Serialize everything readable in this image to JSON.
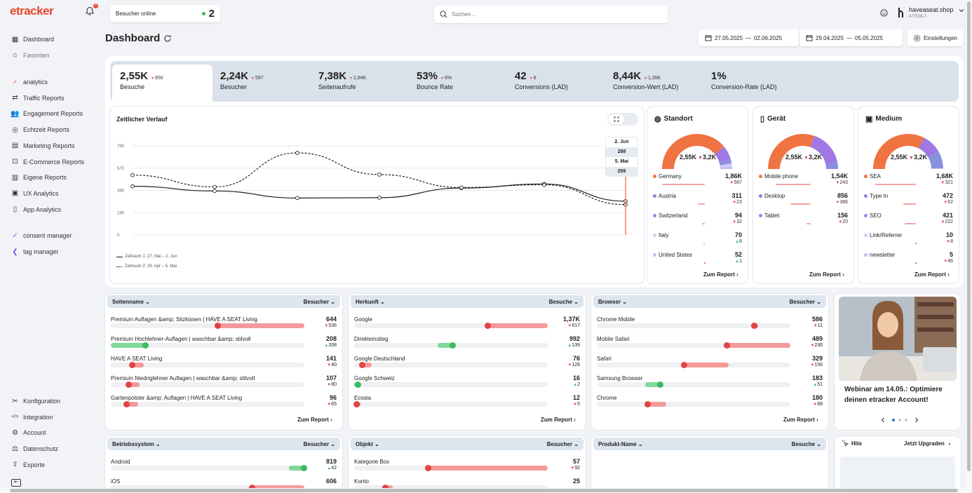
{
  "app": {
    "logo": "etracker",
    "notifications": "0"
  },
  "online": {
    "label": "Besucher online",
    "count": "2"
  },
  "search": {
    "placeholder": "Suchen ..."
  },
  "user": {
    "domain": "haveaseat.shop",
    "id": "477535-7"
  },
  "page": {
    "title": "Dashboard"
  },
  "daterange": {
    "range1": {
      "from": "27.05.2025",
      "sep": "—",
      "to": "02.06.2025"
    },
    "range2": {
      "from": "29.04.2025",
      "sep": "—",
      "to": "05.05.2025"
    },
    "settings_label": "Einstellungen"
  },
  "sidebar": {
    "main": [
      {
        "label": "Dashboard",
        "icon": "grid-icon"
      },
      {
        "label": "Favoriten",
        "icon": "star-icon"
      }
    ],
    "reports": [
      {
        "label": "analytics",
        "icon": "analytics-logo-icon"
      },
      {
        "label": "Traffic Reports",
        "icon": "traffic-icon"
      },
      {
        "label": "Engagement Reports",
        "icon": "users-icon"
      },
      {
        "label": "Echtzeit Reports",
        "icon": "realtime-icon"
      },
      {
        "label": "Marketing Reports",
        "icon": "document-icon"
      },
      {
        "label": "E-Commerce Reports",
        "icon": "cart-icon"
      },
      {
        "label": "Eigene Reports",
        "icon": "custom-report-icon"
      },
      {
        "label": "UX Analytics",
        "icon": "ux-icon"
      },
      {
        "label": "App Analytics",
        "icon": "phone-icon"
      }
    ],
    "tools": [
      {
        "label": "consent manager",
        "icon": "consent-logo-icon"
      },
      {
        "label": "tag manager",
        "icon": "tag-logo-icon"
      }
    ],
    "bottom": [
      {
        "label": "Konfiguration",
        "icon": "tools-icon"
      },
      {
        "label": "Integration",
        "icon": "code-icon"
      },
      {
        "label": "Account",
        "icon": "gear-icon"
      },
      {
        "label": "Datenschutz",
        "icon": "scale-icon"
      },
      {
        "label": "Exporte",
        "icon": "export-icon"
      }
    ]
  },
  "kpis": [
    {
      "value": "2,55K",
      "dir": "down",
      "delta": "650",
      "label": "Besuche",
      "active": true
    },
    {
      "value": "2,24K",
      "dir": "down",
      "delta": "597",
      "label": "Besucher"
    },
    {
      "value": "7,38K",
      "dir": "down",
      "delta": "2,84K",
      "label": "Seitenaufrufe"
    },
    {
      "value": "53%",
      "dir": "down",
      "delta": "6%",
      "label": "Bounce Rate"
    },
    {
      "value": "42",
      "dir": "down",
      "delta": "6",
      "label": "Conversions (LAD)"
    },
    {
      "value": "8,44K",
      "dir": "down",
      "delta": "1,35K",
      "label": "Conversion-Wert (LAD)"
    },
    {
      "value": "1%",
      "dir": "",
      "delta": "",
      "label": "Conversion-Rate (LAD)"
    }
  ],
  "timeline": {
    "title": "Zeitlicher Verlauf",
    "tooltip": {
      "date1": "2. Jun",
      "value1": "288",
      "date2": "5. Mai",
      "value2": "259"
    },
    "legend": [
      "Zeitraum 1: 27. Mai – 2. Jun",
      "Zeitraum 2: 29. Apr – 5. Mai"
    ]
  },
  "chart_data": {
    "type": "line",
    "y_ticks": [
      0,
      190,
      380,
      570,
      760
    ],
    "ylim": [
      0,
      760
    ],
    "series": [
      {
        "name": "Zeitraum 1: 27. Mai – 2. Jun",
        "style": "solid",
        "values": [
          415,
          375,
          315,
          318,
          400,
          435,
          288
        ]
      },
      {
        "name": "Zeitraum 2: 29. Apr – 5. Mai",
        "style": "dashed",
        "values": [
          510,
          410,
          700,
          515,
          405,
          428,
          259
        ]
      }
    ]
  },
  "standort": {
    "title": "Standort",
    "center_value": "2,55K",
    "center_delta": "3,2K",
    "items": [
      {
        "label": "Germany",
        "value": "1,86K",
        "dir": "down",
        "delta": "587",
        "color": "#f07342",
        "bar": 0.85
      },
      {
        "label": "Austria",
        "value": "311",
        "dir": "down",
        "delta": "23",
        "color": "#9f78e3",
        "bar": 0.14
      },
      {
        "label": "Switzerland",
        "value": "94",
        "dir": "down",
        "delta": "32",
        "color": "#8791e0",
        "bar": 0.05
      },
      {
        "label": "Italy",
        "value": "70",
        "dir": "up",
        "delta": "6",
        "color": "#d6c9f2",
        "bar": 0.03
      },
      {
        "label": "United States",
        "value": "52",
        "dir": "up",
        "delta": "1",
        "color": "#b9c3f0",
        "bar": 0.02
      }
    ],
    "link": "Zum Report"
  },
  "geraet": {
    "title": "Gerät",
    "center_value": "2,55K",
    "center_delta": "3,2K",
    "items": [
      {
        "label": "Mobile phone",
        "value": "1,54K",
        "dir": "down",
        "delta": "243",
        "color": "#f07342",
        "bar": 0.7
      },
      {
        "label": "Desktop",
        "value": "856",
        "dir": "down",
        "delta": "386",
        "color": "#9f78e3",
        "bar": 0.4
      },
      {
        "label": "Tablet",
        "value": "156",
        "dir": "down",
        "delta": "20",
        "color": "#8791e0",
        "bar": 0.08
      }
    ],
    "link": "Zum Report"
  },
  "medium": {
    "title": "Medium",
    "center_value": "2,55K",
    "center_delta": "3,2K",
    "items": [
      {
        "label": "SEA",
        "value": "1,68K",
        "dir": "down",
        "delta": "321",
        "color": "#f07342",
        "bar": 0.8
      },
      {
        "label": "Type In",
        "value": "472",
        "dir": "down",
        "delta": "62",
        "color": "#9f78e3",
        "bar": 0.25
      },
      {
        "label": "SEO",
        "value": "421",
        "dir": "down",
        "delta": "222",
        "color": "#8791e0",
        "bar": 0.22
      },
      {
        "label": "Link/Referrer",
        "value": "10",
        "dir": "down",
        "delta": "8",
        "color": "#d6c9f2",
        "bar": 0.01
      },
      {
        "label": "newsletter",
        "value": "5",
        "dir": "down",
        "delta": "46",
        "color": "#b9c3f0",
        "bar": 0.01
      }
    ],
    "link": "Zum Report"
  },
  "seitenname": {
    "col1": "Seitenname",
    "col2": "Besucher",
    "rows": [
      {
        "label": "Premium Auflagen &amp; Sitzkissen | HAVE A SEAT Living",
        "value": "644",
        "dir": "down",
        "delta": "536",
        "start": 0.55,
        "end": 1.0,
        "color": "red"
      },
      {
        "label": "Premium Hochlehner-Auflagen | waschbar &amp; stilvoll",
        "value": "208",
        "dir": "up",
        "delta": "208",
        "start": 0.0,
        "end": 0.18,
        "color": "green"
      },
      {
        "label": "HAVE A SEAT Living",
        "value": "141",
        "dir": "down",
        "delta": "40",
        "start": 0.11,
        "end": 0.17,
        "color": "red"
      },
      {
        "label": "Premium Niedriglehner Auflagen | waschbar &amp; stilvoll",
        "value": "107",
        "dir": "down",
        "delta": "80",
        "start": 0.09,
        "end": 0.15,
        "color": "red"
      },
      {
        "label": "Gartenpolster &amp; Auflagen | HAVE A SEAT Living",
        "value": "96",
        "dir": "down",
        "delta": "65",
        "start": 0.08,
        "end": 0.14,
        "color": "red"
      }
    ],
    "link": "Zum Report"
  },
  "herkunft": {
    "col1": "Herkunft",
    "col2": "Besuche",
    "rows": [
      {
        "label": "Google",
        "value": "1,37K",
        "dir": "down",
        "delta": "617",
        "start": 0.69,
        "end": 1.0,
        "color": "red"
      },
      {
        "label": "Direkteinstieg",
        "value": "992",
        "dir": "up",
        "delta": "139",
        "start": 0.43,
        "end": 0.51,
        "color": "green"
      },
      {
        "label": "Google Deutschland",
        "value": "76",
        "dir": "down",
        "delta": "126",
        "start": 0.04,
        "end": 0.09,
        "color": "red"
      },
      {
        "label": "Google Schweiz",
        "value": "16",
        "dir": "up",
        "delta": "2",
        "start": 0.0,
        "end": 0.015,
        "color": "green"
      },
      {
        "label": "Ecosia",
        "value": "12",
        "dir": "down",
        "delta": "5",
        "start": 0.01,
        "end": 0.02,
        "color": "red"
      }
    ],
    "link": "Zum Report"
  },
  "browser": {
    "col1": "Browser",
    "col2": "Besucher",
    "rows": [
      {
        "label": "Chrome Mobile",
        "value": "586",
        "dir": "down",
        "delta": "11",
        "start": 0.81,
        "end": 0.83,
        "color": "red"
      },
      {
        "label": "Mobile Safari",
        "value": "489",
        "dir": "down",
        "delta": "236",
        "start": 0.67,
        "end": 1.0,
        "color": "red"
      },
      {
        "label": "Safari",
        "value": "329",
        "dir": "down",
        "delta": "156",
        "start": 0.45,
        "end": 0.68,
        "color": "red"
      },
      {
        "label": "Samsung Browser",
        "value": "183",
        "dir": "up",
        "delta": "51",
        "start": 0.25,
        "end": 0.33,
        "color": "green"
      },
      {
        "label": "Chrome",
        "value": "180",
        "dir": "down",
        "delta": "68",
        "start": 0.26,
        "end": 0.36,
        "color": "red"
      }
    ],
    "link": "Zum Report"
  },
  "webinar": {
    "text": "Webinar am 14.05.: Optimiere deinen etracker Account!"
  },
  "betriebssystem": {
    "col1": "Betriebssystem",
    "col2": "Besucher",
    "rows": [
      {
        "label": "Android",
        "value": "819",
        "dir": "up",
        "delta": "42",
        "start": 0.92,
        "end": 1.0,
        "color": "green"
      },
      {
        "label": "iOS",
        "value": "606",
        "dir": "",
        "delta": "",
        "start": 0.73,
        "end": 1.0,
        "color": "red"
      }
    ]
  },
  "objekt": {
    "col1": "Objekt",
    "col2": "Besucher",
    "rows": [
      {
        "label": "Kategorie Box",
        "value": "57",
        "dir": "down",
        "delta": "92",
        "start": 0.38,
        "end": 1.0,
        "color": "red"
      },
      {
        "label": "Konto",
        "value": "25",
        "dir": "",
        "delta": "",
        "start": 0.16,
        "end": 0.2,
        "color": "red"
      }
    ]
  },
  "produkt": {
    "col1": "Produkt-Name",
    "col2": "Besuche"
  },
  "hits": {
    "title": "Hits",
    "upgrade": "Jetzt Upgraden"
  }
}
